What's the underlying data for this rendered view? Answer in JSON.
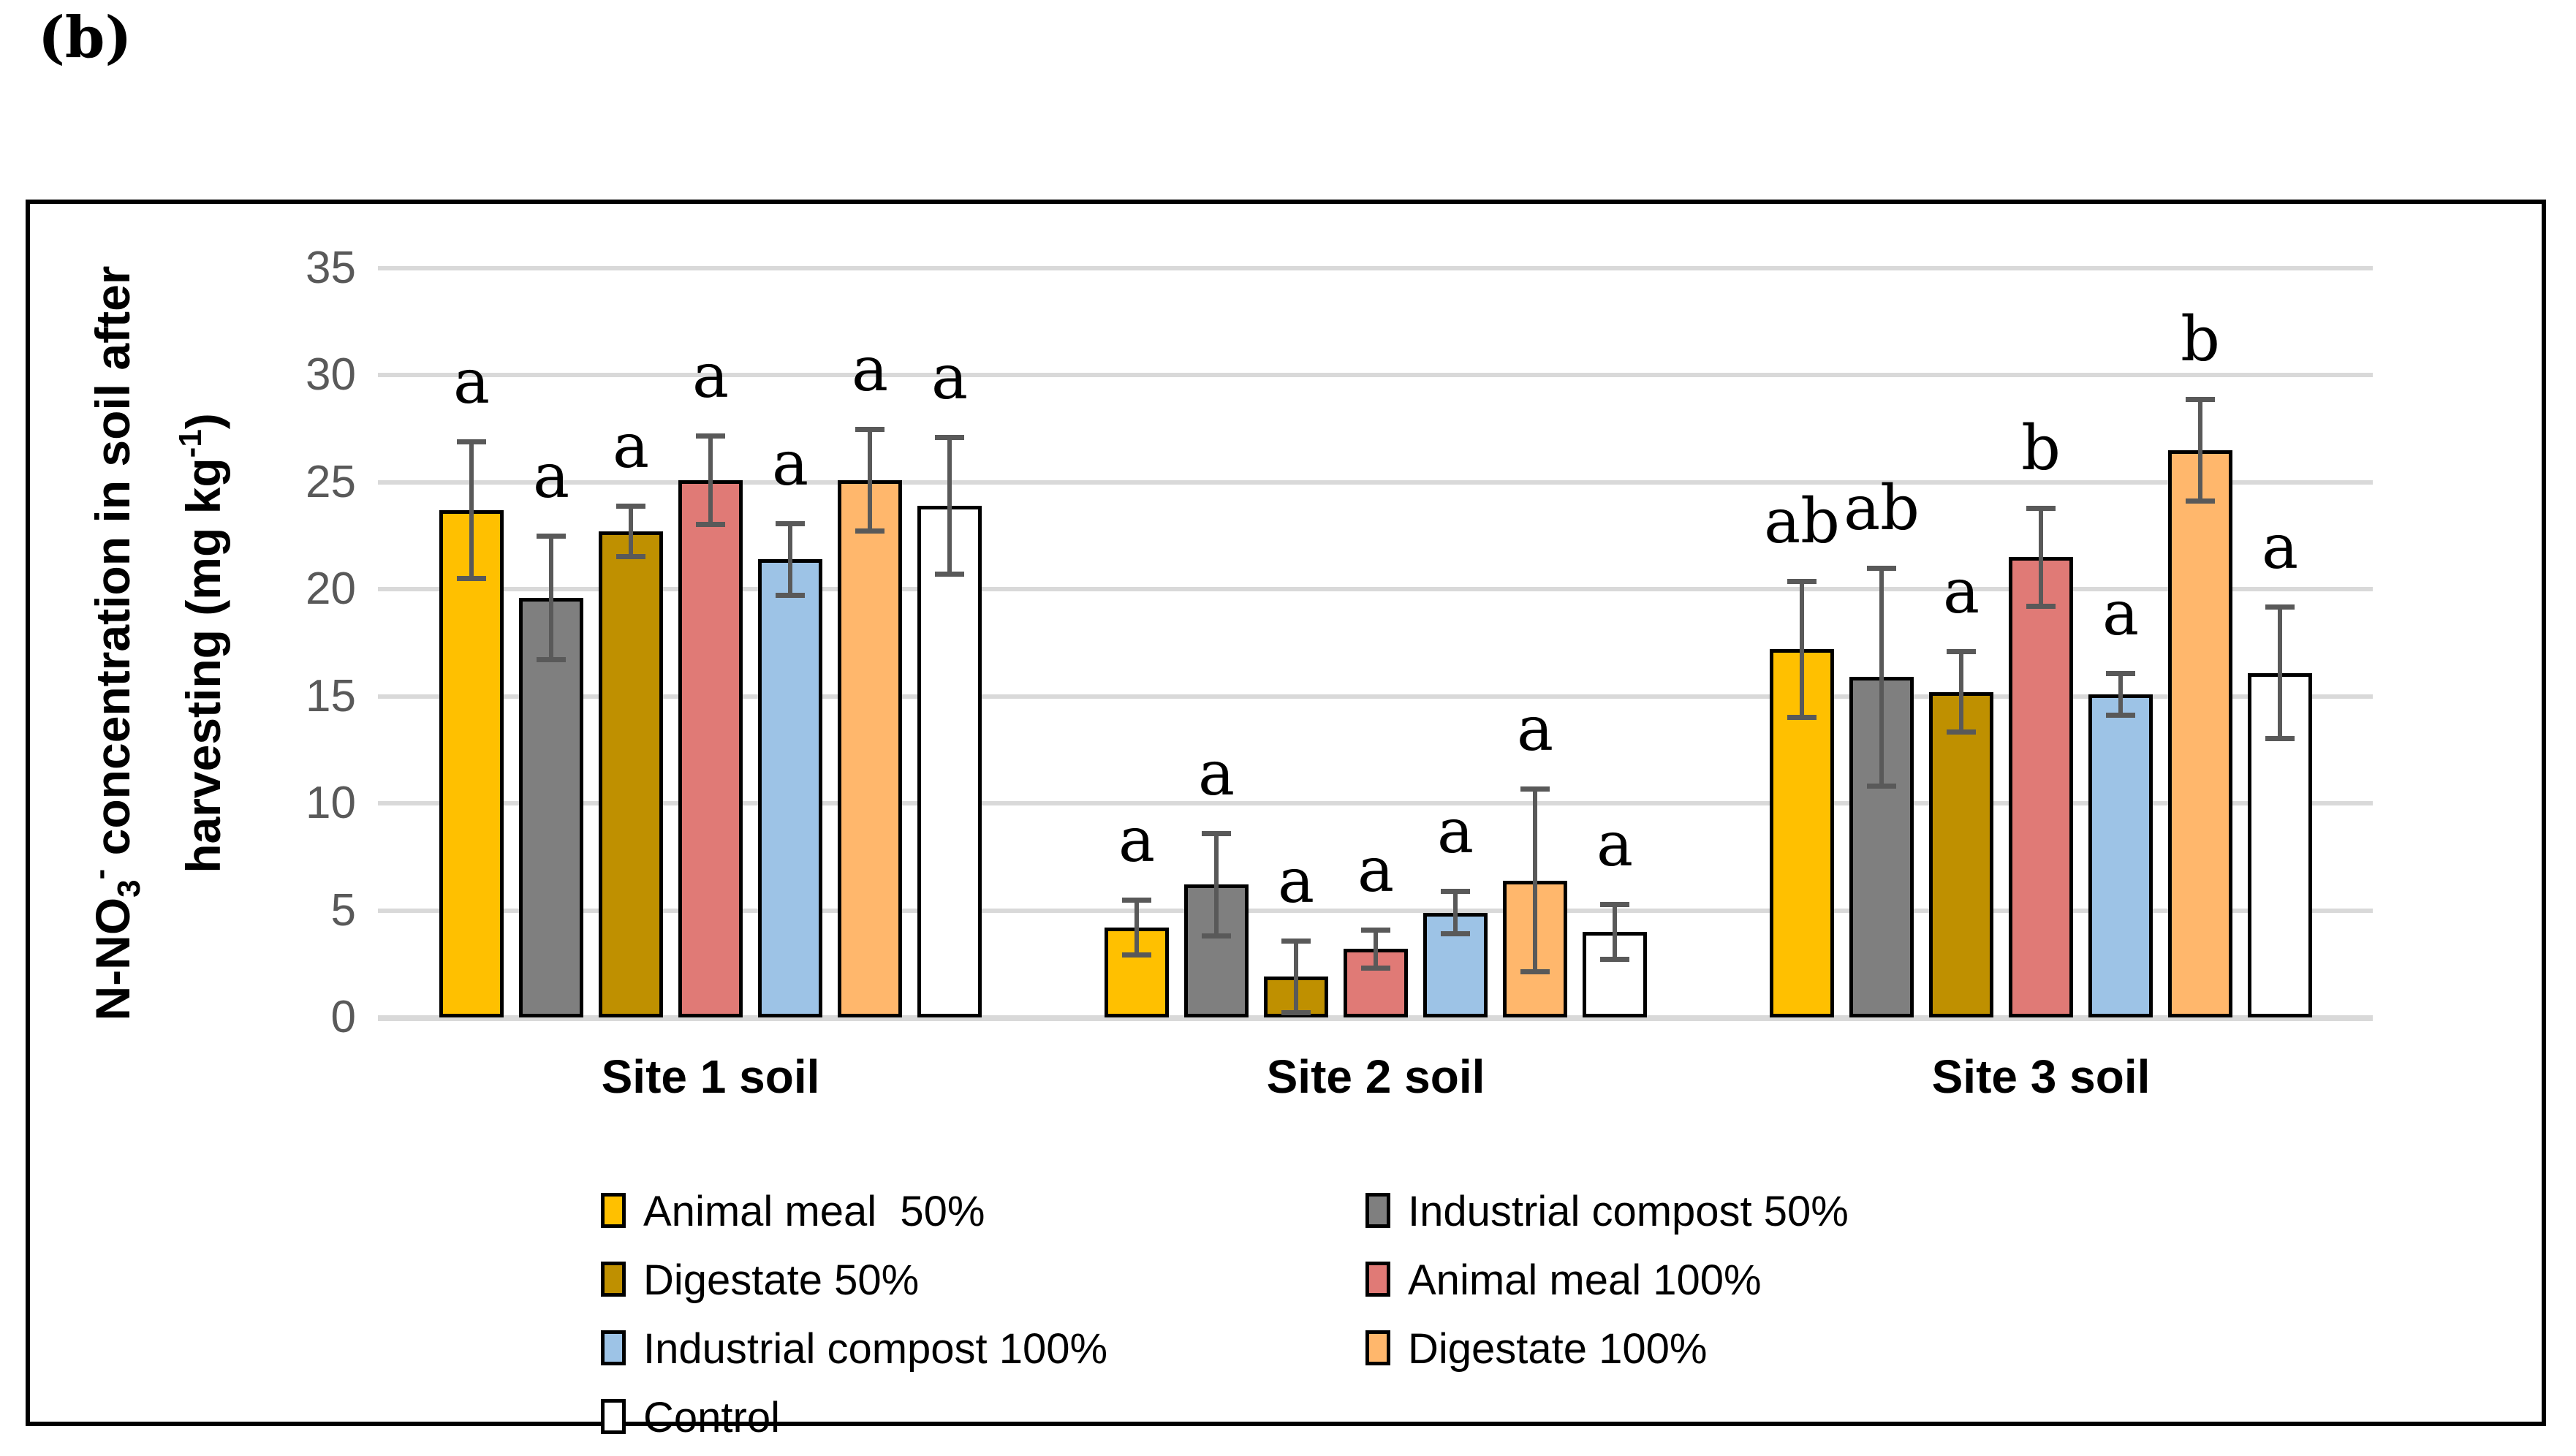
{
  "panel_label": "(b)",
  "y_axis": {
    "title_line1": {
      "base": "N-NO",
      "sub": "3",
      "sup": "-",
      "rest": " concentration in soil after"
    },
    "title_line2": {
      "base": "harvesting (mg kg",
      "sup": "-1",
      "rest": ")"
    }
  },
  "chart_data": {
    "type": "bar",
    "title": "",
    "xlabel": "",
    "ylabel": "N-NO3- concentration in soil after harvesting (mg kg-1)",
    "categories": [
      "Site 1 soil",
      "Site 2 soil",
      "Site 3 soil"
    ],
    "series": [
      {
        "name": "Animal meal  50%",
        "color": "#FFC000",
        "values": [
          23.7,
          4.2,
          17.2
        ],
        "errors": [
          3.3,
          1.4,
          3.3
        ],
        "letters": [
          "a",
          "a",
          "ab"
        ]
      },
      {
        "name": "Industrial compost 50%",
        "color": "#7F7F7F",
        "values": [
          19.6,
          6.2,
          15.9
        ],
        "errors": [
          3.0,
          2.5,
          5.2
        ],
        "letters": [
          "a",
          "a",
          "ab"
        ]
      },
      {
        "name": "Digestate 50%",
        "color": "#BF9000",
        "values": [
          22.7,
          1.9,
          15.2
        ],
        "errors": [
          1.3,
          1.8,
          2.0
        ],
        "letters": [
          "a",
          "a",
          "a"
        ]
      },
      {
        "name": "Animal meal 100%",
        "color": "#E07A76",
        "values": [
          25.1,
          3.2,
          21.5
        ],
        "errors": [
          2.2,
          1.0,
          2.4
        ],
        "letters": [
          "a",
          "a",
          "b"
        ]
      },
      {
        "name": "Industrial compost 100%",
        "color": "#9DC3E6",
        "values": [
          21.4,
          4.9,
          15.1
        ],
        "errors": [
          1.8,
          1.1,
          1.1
        ],
        "letters": [
          "a",
          "a",
          "a"
        ]
      },
      {
        "name": "Digestate 100%",
        "color": "#FFB76C",
        "values": [
          25.1,
          6.4,
          26.5
        ],
        "errors": [
          2.5,
          4.4,
          2.5
        ],
        "letters": [
          "a",
          "a",
          "b"
        ]
      },
      {
        "name": "Control",
        "color": "#FFFFFF",
        "values": [
          23.9,
          4.0,
          16.1
        ],
        "errors": [
          3.3,
          1.4,
          3.2
        ],
        "letters": [
          "a",
          "a",
          "a"
        ]
      }
    ],
    "ylim": [
      0,
      35
    ],
    "ytick_step": 5,
    "grid": true,
    "legend_position": "bottom-inside",
    "style": {
      "gridline_color": "#D9D9D9",
      "axis_line_color": "#D9D9D9",
      "tick_label_color": "#595959",
      "error_bar_color": "#595959",
      "bar_outline_color": "#000000"
    }
  }
}
